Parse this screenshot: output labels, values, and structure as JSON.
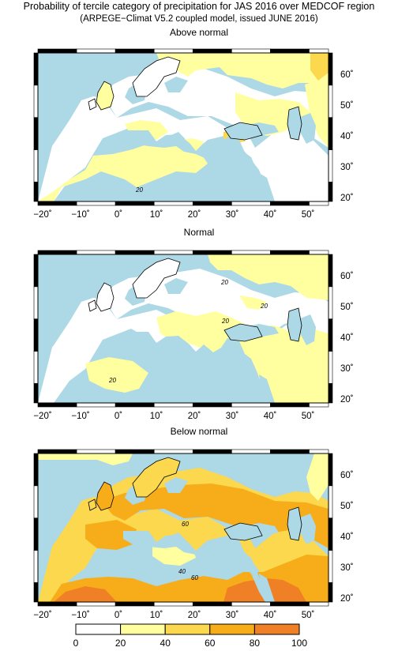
{
  "title": {
    "line1": "Probability of tercile category of precipitation for JAS 2016 over MEDCOF region",
    "line2": "(ARPEGE−Climat V5.2 coupled model, issued JUNE 2016)"
  },
  "panels": [
    {
      "title": "Above normal",
      "contour_labels": [
        "20"
      ]
    },
    {
      "title": "Normal",
      "contour_labels": [
        "20",
        "20",
        "20",
        "20"
      ]
    },
    {
      "title": "Below normal",
      "contour_labels": [
        "60",
        "40",
        "60"
      ]
    }
  ],
  "axes": {
    "lon_ticks": [
      "−20˚",
      "−10˚",
      "0˚",
      "10˚",
      "20˚",
      "30˚",
      "40˚",
      "50˚"
    ],
    "lat_ticks": [
      "60˚",
      "50˚",
      "40˚",
      "30˚",
      "20˚"
    ]
  },
  "colorbar": {
    "labels": [
      "0",
      "20",
      "40",
      "60",
      "80",
      "100"
    ],
    "colors": [
      "#ffffff",
      "#ffff9f",
      "#fbd84d",
      "#f7ad1a",
      "#f08025"
    ]
  },
  "colors": {
    "sea": "#add8e6",
    "land_low": "#ffffff",
    "p20": "#ffff9f",
    "p40": "#fbd84d",
    "p60": "#f7ad1a",
    "p80": "#f08025"
  }
}
